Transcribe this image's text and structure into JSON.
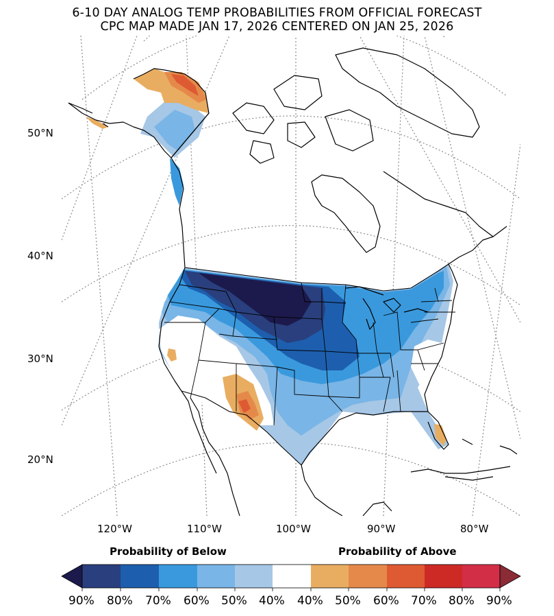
{
  "title": {
    "line1": "6-10 DAY ANALOG TEMP PROBABILITIES FROM OFFICIAL FORECAST",
    "line2": "CPC MAP MADE JAN 17, 2026 CENTERED ON JAN 25, 2026"
  },
  "latitude_labels": [
    "50°N",
    "40°N",
    "30°N",
    "20°N"
  ],
  "longitude_labels": [
    "120°W",
    "110°W",
    "100°W",
    "90°W",
    "80°W"
  ],
  "colorbar": {
    "below_title": "Probability of Below",
    "above_title": "Probability of Above",
    "ticks": [
      "90%",
      "80%",
      "70%",
      "60%",
      "50%",
      "40%",
      "40%",
      "50%",
      "60%",
      "70%",
      "80%",
      "90%"
    ],
    "colors": [
      "#1c1a4c",
      "#2a3f7d",
      "#1d5fae",
      "#3a99dd",
      "#79b5e6",
      "#a6c7e6",
      "#ffffff",
      "#e9ad61",
      "#e5894a",
      "#de5a32",
      "#cd2a26",
      "#d22e46",
      "#8a2b36"
    ]
  },
  "map_colors": {
    "below_90": "#1c1a4c",
    "below_80": "#2a3f7d",
    "below_70": "#1d5fae",
    "below_60": "#3a99dd",
    "below_50": "#79b5e6",
    "below_40": "#a6c7e6",
    "near_normal": "#ffffff",
    "above_40": "#e9ad61",
    "above_50": "#e5894a",
    "above_60": "#de5a32",
    "above_70": "#cd2a26"
  }
}
